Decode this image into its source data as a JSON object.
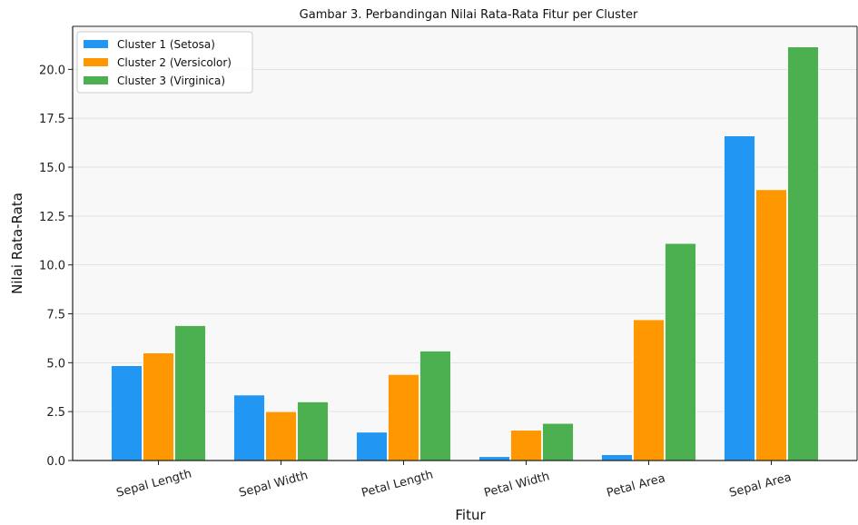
{
  "chart_data": {
    "type": "bar",
    "title": "Gambar 3. Perbandingan Nilai Rata-Rata Fitur per Cluster",
    "xlabel": "Fitur",
    "ylabel": "Nilai Rata-Rata",
    "categories": [
      "Sepal Length",
      "Sepal Width",
      "Petal Length",
      "Petal Width",
      "Petal Area",
      "Sepal Area"
    ],
    "series": [
      {
        "name": "Cluster 1 (Setosa)",
        "color": "#2196f3",
        "values": [
          4.85,
          3.35,
          1.45,
          0.2,
          0.3,
          16.6
        ]
      },
      {
        "name": "Cluster 2 (Versicolor)",
        "color": "#ff9800",
        "values": [
          5.5,
          2.5,
          4.4,
          1.55,
          7.2,
          13.85
        ]
      },
      {
        "name": "Cluster 3 (Virginica)",
        "color": "#4caf50",
        "values": [
          6.9,
          3.0,
          5.6,
          1.9,
          11.1,
          21.15
        ]
      }
    ],
    "ylim": [
      0,
      22.2
    ],
    "yticks": [
      0.0,
      2.5,
      5.0,
      7.5,
      10.0,
      12.5,
      15.0,
      17.5,
      20.0
    ],
    "ytick_labels": [
      "0.0",
      "2.5",
      "5.0",
      "7.5",
      "10.0",
      "12.5",
      "15.0",
      "17.5",
      "20.0"
    ],
    "grid": "y",
    "legend_position": "top-left",
    "plot_background": "#f8f8f8"
  }
}
